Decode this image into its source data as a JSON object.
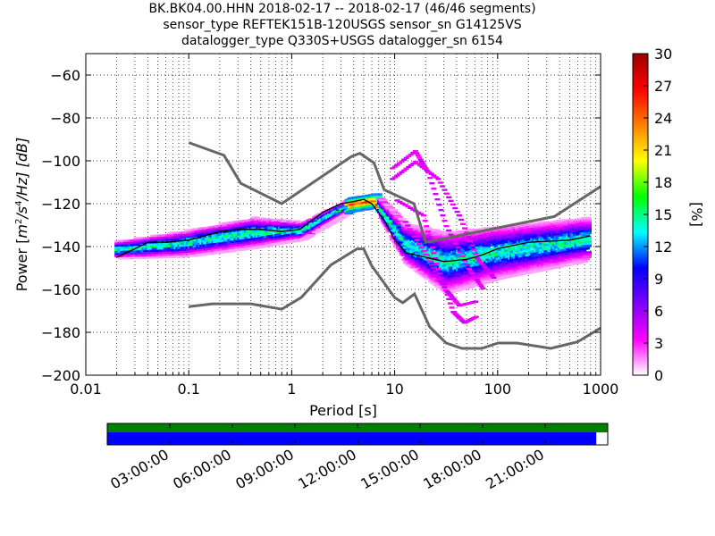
{
  "chart_data": {
    "type": "heatmap",
    "title_lines": [
      "BK.BK04.00.HHN   2018-02-17 -- 2018-02-17  (46/46 segments)",
      "sensor_type REFTEK151B-120USGS sensor_sn G14125VS",
      "datalogger_type Q330S+USGS datalogger_sn 6154"
    ],
    "xlabel": "Period [s]",
    "ylabel": "Power [m²/s⁴/Hz] [dB]",
    "ylabel_parts": {
      "prefix": "Power [",
      "unit_base": "m",
      "exp1": "2",
      "mid": "/s",
      "exp2": "4",
      "tail": "/Hz] [dB]"
    },
    "x_scale": "log",
    "xlim": [
      0.01,
      1000
    ],
    "ylim": [
      -200,
      -50
    ],
    "x_ticks": [
      0.01,
      0.1,
      1,
      10,
      100,
      1000
    ],
    "x_tick_labels": [
      "0.01",
      "0.1",
      "1",
      "10",
      "100",
      "1000"
    ],
    "y_ticks": [
      -200,
      -180,
      -160,
      -140,
      -120,
      -100,
      -80,
      -60
    ],
    "y_tick_labels": [
      "−200",
      "−180",
      "−160",
      "−140",
      "−120",
      "−100",
      "−80",
      "−60"
    ],
    "grid": "dotted",
    "colorbar": {
      "label": "[%]",
      "range": [
        0,
        30
      ],
      "ticks": [
        0,
        3,
        6,
        9,
        12,
        15,
        18,
        21,
        24,
        27,
        30
      ],
      "tick_labels": [
        "0",
        "3",
        "6",
        "9",
        "12",
        "15",
        "18",
        "21",
        "24",
        "27",
        "30"
      ],
      "colormap": [
        "#ffffff",
        "#ff00ff",
        "#8000ff",
        "#0000ff",
        "#00ffff",
        "#00ff00",
        "#ffff00",
        "#ff8000",
        "#ff0000",
        "#990000"
      ]
    },
    "noise_models": {
      "color": "#666666",
      "new_high_noise_model": [
        [
          0.1,
          -91.5
        ],
        [
          0.22,
          -97.4
        ],
        [
          0.32,
          -110.5
        ],
        [
          0.8,
          -120
        ],
        [
          3.8,
          -98
        ],
        [
          4.6,
          -96.5
        ],
        [
          6.3,
          -101
        ],
        [
          7.9,
          -113.5
        ],
        [
          15.4,
          -120
        ],
        [
          20,
          -138
        ],
        [
          354.8,
          -126
        ],
        [
          1000,
          -112
        ]
      ],
      "new_low_noise_model": [
        [
          0.1,
          -168
        ],
        [
          0.17,
          -166.7
        ],
        [
          0.4,
          -166.7
        ],
        [
          0.8,
          -169.2
        ],
        [
          1.24,
          -163.7
        ],
        [
          2.4,
          -148.6
        ],
        [
          4.3,
          -141.1
        ],
        [
          5,
          -141.1
        ],
        [
          6,
          -149
        ],
        [
          10,
          -163.8
        ],
        [
          12,
          -166.2
        ],
        [
          15.6,
          -162.1
        ],
        [
          21.9,
          -177.5
        ],
        [
          31.6,
          -185
        ],
        [
          45,
          -187.5
        ],
        [
          70,
          -187.5
        ],
        [
          101,
          -185
        ],
        [
          154,
          -185
        ],
        [
          328,
          -187.5
        ],
        [
          600,
          -184.4
        ],
        [
          1000,
          -178
        ]
      ]
    },
    "mean_curve": [
      [
        0.02,
        -145
      ],
      [
        0.03,
        -141
      ],
      [
        0.04,
        -138
      ],
      [
        0.06,
        -138
      ],
      [
        0.1,
        -137
      ],
      [
        0.2,
        -133
      ],
      [
        0.3,
        -132
      ],
      [
        0.5,
        -132
      ],
      [
        0.8,
        -133
      ],
      [
        1.2,
        -132
      ],
      [
        2,
        -124
      ],
      [
        3,
        -120
      ],
      [
        4,
        -119
      ],
      [
        5,
        -118
      ],
      [
        6,
        -120
      ],
      [
        8,
        -128
      ],
      [
        10,
        -137
      ],
      [
        13,
        -143
      ],
      [
        20,
        -145
      ],
      [
        30,
        -147
      ],
      [
        50,
        -146
      ],
      [
        70,
        -144
      ],
      [
        100,
        -141
      ],
      [
        200,
        -138
      ],
      [
        500,
        -137
      ],
      [
        800,
        -135
      ]
    ],
    "density_bands": [
      {
        "p0": 0.019,
        "p1": 0.09,
        "c0": -141,
        "c1": -138,
        "s0": 4,
        "s1": 6
      },
      {
        "p0": 0.09,
        "p1": 0.4,
        "c0": -138,
        "c1": -133,
        "s0": 6,
        "s1": 7
      },
      {
        "p0": 0.4,
        "p1": 1.2,
        "c0": -133,
        "c1": -132,
        "s0": 7,
        "s1": 4
      },
      {
        "p0": 1.2,
        "p1": 3.5,
        "c0": -132,
        "c1": -120,
        "s0": 4,
        "s1": 3
      },
      {
        "p0": 3.5,
        "p1": 6.5,
        "c0": -120,
        "c1": -118,
        "s0": 3,
        "s1": 3
      },
      {
        "p0": 6.5,
        "p1": 12,
        "c0": -120,
        "c1": -138,
        "s0": 4,
        "s1": 9
      },
      {
        "p0": 12,
        "p1": 30,
        "c0": -138,
        "c1": -147,
        "s0": 9,
        "s1": 14
      },
      {
        "p0": 30,
        "p1": 100,
        "c0": -147,
        "c1": -142,
        "s0": 14,
        "s1": 12
      },
      {
        "p0": 100,
        "p1": 700,
        "c0": -142,
        "c1": -136,
        "s0": 12,
        "s1": 10
      }
    ],
    "scatter_bands": [
      {
        "pts": [
          [
            9,
            -103
          ],
          [
            15,
            -95
          ],
          [
            20,
            -105
          ],
          [
            30,
            -130
          ],
          [
            50,
            -150
          ],
          [
            70,
            -160
          ]
        ]
      },
      {
        "pts": [
          [
            9,
            -108
          ],
          [
            15,
            -100
          ],
          [
            25,
            -108
          ],
          [
            40,
            -125
          ],
          [
            60,
            -145
          ],
          [
            90,
            -155
          ]
        ]
      },
      {
        "pts": [
          [
            10,
            -118
          ],
          [
            18,
            -125
          ],
          [
            25,
            -150
          ],
          [
            35,
            -170
          ],
          [
            45,
            -175
          ],
          [
            60,
            -172
          ]
        ]
      },
      {
        "pts": [
          [
            12,
            -128
          ],
          [
            20,
            -145
          ],
          [
            30,
            -160
          ],
          [
            40,
            -167
          ],
          [
            60,
            -165
          ]
        ]
      }
    ],
    "timeline": {
      "tick_labels": [
        "03:00:00",
        "06:00:00",
        "09:00:00",
        "12:00:00",
        "15:00:00",
        "18:00:00",
        "21:00:00"
      ],
      "tick_hours": [
        3,
        6,
        9,
        12,
        15,
        18,
        21
      ],
      "span_hours": [
        0,
        24
      ],
      "available_color": "#008000",
      "used_color": "#0000ff",
      "used_fraction": 0.977
    }
  }
}
